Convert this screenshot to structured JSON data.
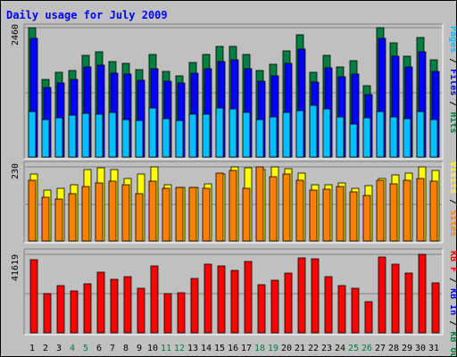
{
  "chart_data": [
    {
      "type": "bar",
      "title": "Daily usage for July 2009",
      "y_max_label": "2460",
      "categories": [
        "1",
        "2",
        "3",
        "4",
        "5",
        "6",
        "7",
        "8",
        "9",
        "10",
        "11",
        "12",
        "13",
        "14",
        "15",
        "16",
        "17",
        "18",
        "19",
        "20",
        "21",
        "22",
        "23",
        "24",
        "25",
        "26",
        "27",
        "28",
        "29",
        "30",
        "31"
      ],
      "weekend_days": [
        "4",
        "5",
        "11",
        "12",
        "18",
        "19",
        "25",
        "26"
      ],
      "legend": [
        "Pages",
        "Files",
        "Hits"
      ],
      "series": [
        {
          "name": "Hits",
          "color": "#008040",
          "values": [
            2460,
            1480,
            1620,
            1650,
            1930,
            2000,
            1810,
            1780,
            1660,
            1950,
            1630,
            1550,
            1790,
            1950,
            2100,
            2100,
            1950,
            1650,
            1760,
            2020,
            2330,
            1610,
            1930,
            1720,
            1830,
            1350,
            2460,
            2180,
            1920,
            2280,
            1850
          ]
        },
        {
          "name": "Files",
          "color": "#0000ff",
          "values": [
            2250,
            1320,
            1410,
            1480,
            1720,
            1750,
            1600,
            1580,
            1460,
            1680,
            1450,
            1400,
            1590,
            1680,
            1820,
            1850,
            1680,
            1450,
            1550,
            1780,
            2060,
            1420,
            1690,
            1520,
            1580,
            1190,
            2250,
            1920,
            1720,
            2010,
            1630
          ]
        },
        {
          "name": "Pages",
          "color": "#00c0ff",
          "values": [
            860,
            710,
            750,
            800,
            830,
            810,
            840,
            720,
            700,
            930,
            730,
            700,
            820,
            820,
            940,
            920,
            840,
            710,
            770,
            840,
            880,
            990,
            910,
            770,
            630,
            750,
            860,
            760,
            730,
            860,
            720
          ]
        }
      ]
    },
    {
      "type": "bar",
      "y_max_label": "230",
      "legend": [
        "Visits",
        "Sites"
      ],
      "series": [
        {
          "name": "Visits",
          "color": "#ffff00",
          "values": [
            207,
            157,
            163,
            174,
            222,
            226,
            222,
            193,
            207,
            230,
            174,
            167,
            167,
            177,
            207,
            230,
            228,
            222,
            230,
            224,
            211,
            174,
            174,
            181,
            163,
            172,
            193,
            204,
            211,
            230,
            219
          ]
        },
        {
          "name": "Sites",
          "color": "#ff8000",
          "values": [
            189,
            137,
            130,
            148,
            170,
            181,
            185,
            174,
            148,
            187,
            163,
            167,
            167,
            163,
            211,
            219,
            163,
            230,
            200,
            207,
            189,
            159,
            161,
            169,
            152,
            141,
            189,
            176,
            189,
            194,
            185
          ]
        }
      ]
    },
    {
      "type": "bar",
      "y_max_label": "41619",
      "legend": [
        "KB F",
        "KB In",
        "KB Out"
      ],
      "series": [
        {
          "name": "KB F",
          "color": "#ff0000",
          "values": [
            38900,
            20800,
            24900,
            22000,
            25800,
            32000,
            28400,
            29600,
            23600,
            35700,
            20800,
            21500,
            28700,
            36500,
            35600,
            33200,
            37800,
            25600,
            27800,
            31600,
            39600,
            39300,
            29700,
            25100,
            23600,
            16400,
            40300,
            36600,
            31600,
            41619,
            26600
          ]
        }
      ]
    }
  ]
}
